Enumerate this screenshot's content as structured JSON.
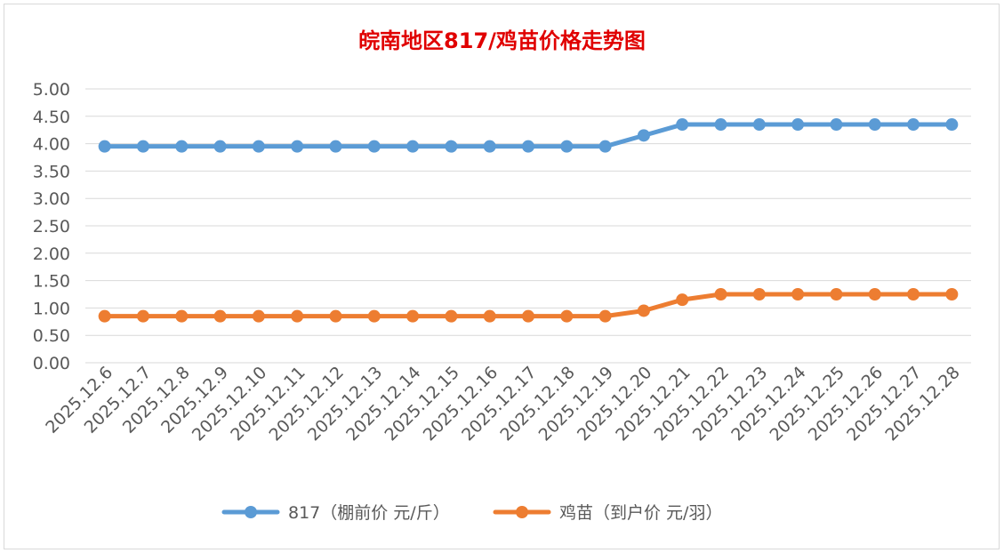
{
  "chart_data": {
    "type": "line",
    "title": "皖南地区817/鸡苗价格走势图",
    "categories": [
      "2025.12.6",
      "2025.12.7",
      "2025.12.8",
      "2025.12.9",
      "2025.12.10",
      "2025.12.11",
      "2025.12.12",
      "2025.12.13",
      "2025.12.14",
      "2025.12.15",
      "2025.12.16",
      "2025.12.17",
      "2025.12.18",
      "2025.12.19",
      "2025.12.20",
      "2025.12.21",
      "2025.12.22",
      "2025.12.23",
      "2025.12.24",
      "2025.12.25",
      "2025.12.26",
      "2025.12.27",
      "2025.12.28"
    ],
    "series": [
      {
        "name": "817（棚前价 元/斤）",
        "color": "#5b9bd5",
        "values": [
          3.95,
          3.95,
          3.95,
          3.95,
          3.95,
          3.95,
          3.95,
          3.95,
          3.95,
          3.95,
          3.95,
          3.95,
          3.95,
          3.95,
          4.15,
          4.35,
          4.35,
          4.35,
          4.35,
          4.35,
          4.35,
          4.35,
          4.35
        ]
      },
      {
        "name": "鸡苗（到户价 元/羽）",
        "color": "#ed7d31",
        "values": [
          0.85,
          0.85,
          0.85,
          0.85,
          0.85,
          0.85,
          0.85,
          0.85,
          0.85,
          0.85,
          0.85,
          0.85,
          0.85,
          0.85,
          0.95,
          1.15,
          1.25,
          1.25,
          1.25,
          1.25,
          1.25,
          1.25,
          1.25
        ]
      }
    ],
    "ylim": [
      0,
      5
    ],
    "yticks": [
      "0.00",
      "0.50",
      "1.00",
      "1.50",
      "2.00",
      "2.50",
      "3.00",
      "3.50",
      "4.00",
      "4.50",
      "5.00"
    ],
    "grid": true,
    "legend_position": "bottom"
  }
}
